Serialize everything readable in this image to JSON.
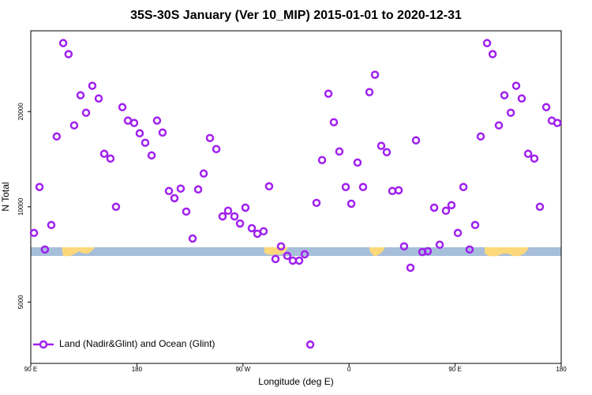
{
  "chart_data": {
    "type": "scatter",
    "title": "35S-30S January (Ver 10_MIP)   2015-01-01 to 2020-12-31",
    "x_label": "Longitude (deg E)",
    "y_label": "N Total",
    "xlim": [
      90,
      540
    ],
    "ylim": [
      3200,
      36000
    ],
    "log_y": true,
    "xticks": [
      {
        "value": 90,
        "label": "90 E"
      },
      180,
      {
        "value": 270,
        "label": "90 W"
      },
      {
        "value": 360,
        "label": "0"
      },
      {
        "value": 450,
        "label": "90 E"
      },
      {
        "value": 540,
        "label": "180"
      }
    ],
    "yticks": [
      5000,
      10000,
      20000
    ],
    "legend": "bottom-left",
    "x": [
      92.7,
      97.4,
      102,
      107.4,
      112,
      117.5,
      122,
      126.8,
      132.2,
      136.9,
      142.2,
      147.6,
      152.3,
      157.6,
      162.3,
      167.7,
      172.4,
      177.7,
      182.4,
      187.1,
      192.5,
      197.1,
      201.8,
      207.2,
      211.9,
      217.2,
      221.9,
      227.3,
      232,
      236.7,
      242,
      247.4,
      252.7,
      257.4,
      262.8,
      267.5,
      272.1,
      277.5,
      282.2,
      287.5,
      292.2,
      297.6,
      302.3,
      307.6,
      312.3,
      317.7,
      322.4,
      327.1,
      332.4,
      337.1,
      342.5,
      347.1,
      351.8,
      357.2,
      361.9,
      367.2,
      371.9,
      377.3,
      382,
      387.3,
      392,
      396.7,
      402.1,
      406.7,
      412.1,
      416.8,
      422.2,
      426.8,
      432.2,
      436.9,
      442.2,
      446.9,
      452.3,
      457,
      462.3,
      467,
      471.7,
      477.1,
      481.8,
      487.1,
      491.8,
      497.2,
      501.8,
      506.5,
      511.9,
      517.2,
      521.9,
      527.3,
      532,
      536.7
    ],
    "series": [
      {
        "name": "Land (Nadir&Glint) and Ocean (Glint)",
        "color": "#a020f0",
        "values": [
          8270,
          11550,
          7330,
          8760,
          16690,
          32920,
          30380,
          18090,
          22520,
          19830,
          24130,
          22000,
          14710,
          14210,
          10000,
          20650,
          18730,
          18410,
          17080,
          15940,
          14540,
          18730,
          17170,
          11220,
          10650,
          11420,
          9660,
          7940,
          11350,
          12740,
          16500,
          15220,
          9330,
          9720,
          9330,
          8860,
          9940,
          8560,
          8220,
          8370,
          11610,
          6840,
          7500,
          7000,
          6760,
          6760,
          7080,
          3670,
          10290,
          14050,
          22780,
          18510,
          14960,
          11550,
          10230,
          13800,
          11550,
          23040,
          26150,
          15580,
          14880,
          11220,
          11280,
          7500,
          6420,
          16220,
          7200,
          7240,
          9940,
          7590,
          9720,
          10120,
          8270,
          11550,
          7330,
          8760,
          16690,
          32920,
          30380,
          18090,
          22520,
          19830,
          24130,
          22000,
          14710,
          14210,
          10000,
          20650,
          18730,
          18410
        ]
      }
    ]
  }
}
